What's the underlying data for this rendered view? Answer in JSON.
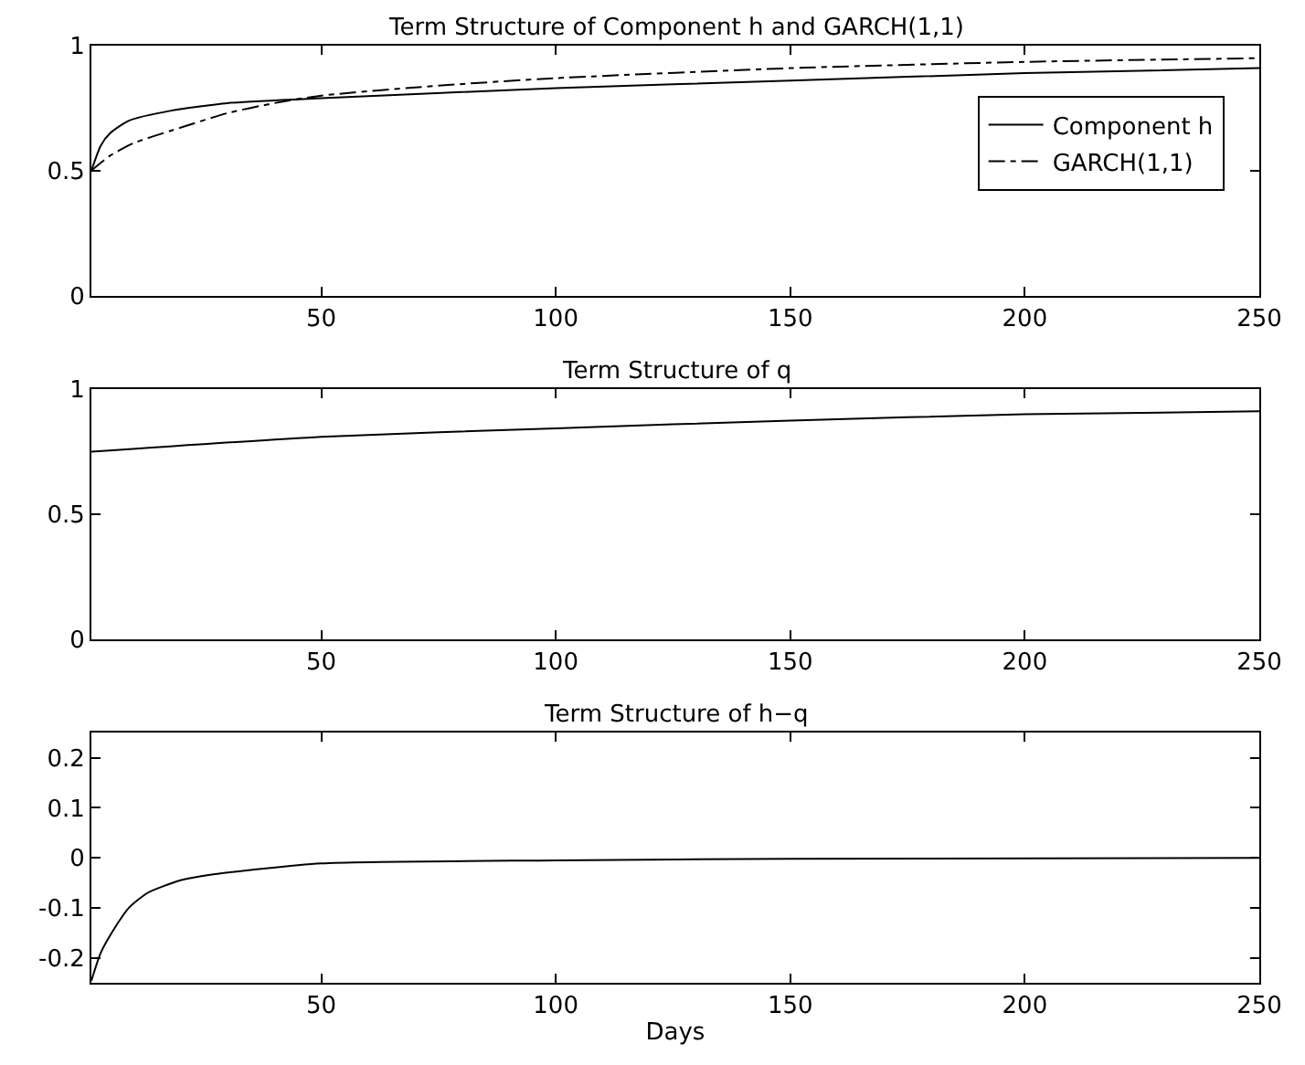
{
  "chart_data": [
    {
      "type": "line",
      "title": "Term Structure of Component h and GARCH(1,1)",
      "xlim": [
        1,
        250
      ],
      "xticks": [
        50,
        100,
        150,
        200,
        250
      ],
      "ylim": [
        0,
        1
      ],
      "yticks": [
        0,
        0.5,
        1
      ],
      "legend": "top right",
      "series": [
        {
          "name": "Component h",
          "color": "#000000",
          "line_style": "solid",
          "x": [
            1,
            3,
            5,
            9,
            18,
            30,
            50,
            100,
            150,
            200,
            250
          ],
          "values": [
            0.5,
            0.6,
            0.65,
            0.7,
            0.74,
            0.77,
            0.79,
            0.83,
            0.86,
            0.89,
            0.91
          ]
        },
        {
          "name": "GARCH(1,1)",
          "color": "#000000",
          "line_style": "dashdot",
          "x": [
            1,
            5,
            10,
            18,
            30,
            40,
            50,
            75,
            100,
            150,
            200,
            250
          ],
          "values": [
            0.5,
            0.56,
            0.61,
            0.66,
            0.73,
            0.77,
            0.8,
            0.84,
            0.87,
            0.91,
            0.935,
            0.95
          ]
        }
      ]
    },
    {
      "type": "line",
      "title": "Term Structure of q",
      "xlim": [
        1,
        250
      ],
      "xticks": [
        50,
        100,
        150,
        200,
        250
      ],
      "ylim": [
        0,
        1
      ],
      "yticks": [
        0,
        0.5,
        1
      ],
      "legend": false,
      "series": [
        {
          "color": "#000000",
          "line_style": "solid",
          "x": [
            1,
            50,
            100,
            150,
            200,
            250
          ],
          "values": [
            0.75,
            0.81,
            0.844,
            0.875,
            0.9,
            0.912
          ]
        }
      ]
    },
    {
      "type": "line",
      "title": "Term Structure of h−q",
      "xlabel": "Days",
      "xlim": [
        1,
        250
      ],
      "xticks": [
        50,
        100,
        150,
        200,
        250
      ],
      "ylim": [
        -0.25,
        0.25
      ],
      "yticks": [
        -0.2,
        -0.1,
        0,
        0.1,
        0.2
      ],
      "legend": false,
      "series": [
        {
          "color": "#000000",
          "line_style": "solid",
          "x": [
            1,
            3,
            6,
            9,
            13,
            20,
            27,
            50,
            100,
            150,
            250
          ],
          "values": [
            -0.246,
            -0.19,
            -0.14,
            -0.1,
            -0.07,
            -0.045,
            -0.033,
            -0.011,
            -0.005,
            -0.002,
            0
          ]
        }
      ]
    }
  ]
}
